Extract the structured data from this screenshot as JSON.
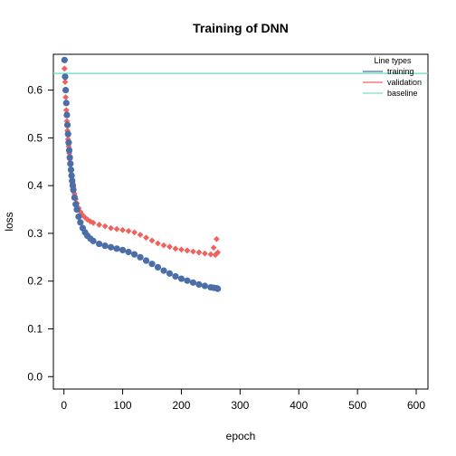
{
  "chart_data": {
    "type": "scatter",
    "title": "Training of DNN",
    "xlabel": "epoch",
    "ylabel": "loss",
    "xlim": [
      -18,
      620
    ],
    "ylim": [
      -0.026,
      0.675
    ],
    "x_ticks": [
      0,
      100,
      200,
      300,
      400,
      500,
      600
    ],
    "y_ticks": [
      0.0,
      0.1,
      0.2,
      0.3,
      0.4,
      0.5,
      0.6
    ],
    "y_tick_labels": [
      "0.0",
      "0.1",
      "0.2",
      "0.3",
      "0.4",
      "0.5",
      "0.6"
    ],
    "grid": false,
    "legend": {
      "title": "Line types",
      "placement": "top-right",
      "entries": [
        "training",
        "validation",
        "baseline"
      ]
    },
    "baseline": {
      "name": "baseline",
      "y": 0.635,
      "color": "#7fe0cc"
    },
    "series": [
      {
        "name": "validation",
        "color": "#f0625c",
        "marker": "diamond",
        "points": [
          [
            1,
            0.645
          ],
          [
            2,
            0.617
          ],
          [
            3,
            0.585
          ],
          [
            4,
            0.558
          ],
          [
            5,
            0.535
          ],
          [
            6,
            0.515
          ],
          [
            7,
            0.497
          ],
          [
            8,
            0.482
          ],
          [
            9,
            0.468
          ],
          [
            10,
            0.455
          ],
          [
            11,
            0.443
          ],
          [
            12,
            0.432
          ],
          [
            13,
            0.422
          ],
          [
            14,
            0.413
          ],
          [
            15,
            0.404
          ],
          [
            16,
            0.396
          ],
          [
            18,
            0.383
          ],
          [
            20,
            0.372
          ],
          [
            22,
            0.363
          ],
          [
            25,
            0.353
          ],
          [
            28,
            0.345
          ],
          [
            32,
            0.338
          ],
          [
            36,
            0.333
          ],
          [
            40,
            0.329
          ],
          [
            45,
            0.325
          ],
          [
            50,
            0.322
          ],
          [
            60,
            0.318
          ],
          [
            70,
            0.315
          ],
          [
            80,
            0.311
          ],
          [
            90,
            0.309
          ],
          [
            100,
            0.307
          ],
          [
            110,
            0.305
          ],
          [
            120,
            0.302
          ],
          [
            130,
            0.297
          ],
          [
            140,
            0.291
          ],
          [
            150,
            0.285
          ],
          [
            160,
            0.279
          ],
          [
            170,
            0.275
          ],
          [
            180,
            0.272
          ],
          [
            190,
            0.268
          ],
          [
            200,
            0.266
          ],
          [
            210,
            0.264
          ],
          [
            220,
            0.262
          ],
          [
            230,
            0.26
          ],
          [
            240,
            0.258
          ],
          [
            250,
            0.256
          ],
          [
            255,
            0.27
          ],
          [
            258,
            0.255
          ],
          [
            260,
            0.288
          ],
          [
            262,
            0.26
          ]
        ]
      },
      {
        "name": "training",
        "color": "#4b6ea9",
        "marker": "circle",
        "points": [
          [
            1,
            0.663
          ],
          [
            2,
            0.628
          ],
          [
            3,
            0.6
          ],
          [
            4,
            0.573
          ],
          [
            5,
            0.548
          ],
          [
            6,
            0.527
          ],
          [
            7,
            0.508
          ],
          [
            8,
            0.49
          ],
          [
            9,
            0.474
          ],
          [
            10,
            0.459
          ],
          [
            11,
            0.446
          ],
          [
            12,
            0.433
          ],
          [
            13,
            0.421
          ],
          [
            14,
            0.41
          ],
          [
            15,
            0.4
          ],
          [
            16,
            0.391
          ],
          [
            18,
            0.375
          ],
          [
            20,
            0.361
          ],
          [
            22,
            0.35
          ],
          [
            25,
            0.335
          ],
          [
            28,
            0.323
          ],
          [
            32,
            0.311
          ],
          [
            36,
            0.302
          ],
          [
            40,
            0.295
          ],
          [
            45,
            0.289
          ],
          [
            50,
            0.284
          ],
          [
            60,
            0.278
          ],
          [
            70,
            0.274
          ],
          [
            80,
            0.271
          ],
          [
            90,
            0.268
          ],
          [
            100,
            0.265
          ],
          [
            110,
            0.261
          ],
          [
            120,
            0.256
          ],
          [
            130,
            0.25
          ],
          [
            140,
            0.243
          ],
          [
            150,
            0.236
          ],
          [
            160,
            0.229
          ],
          [
            170,
            0.222
          ],
          [
            180,
            0.216
          ],
          [
            190,
            0.21
          ],
          [
            200,
            0.205
          ],
          [
            210,
            0.201
          ],
          [
            220,
            0.197
          ],
          [
            230,
            0.193
          ],
          [
            240,
            0.19
          ],
          [
            250,
            0.187
          ],
          [
            255,
            0.186
          ],
          [
            260,
            0.185
          ],
          [
            262,
            0.184
          ]
        ]
      }
    ]
  }
}
